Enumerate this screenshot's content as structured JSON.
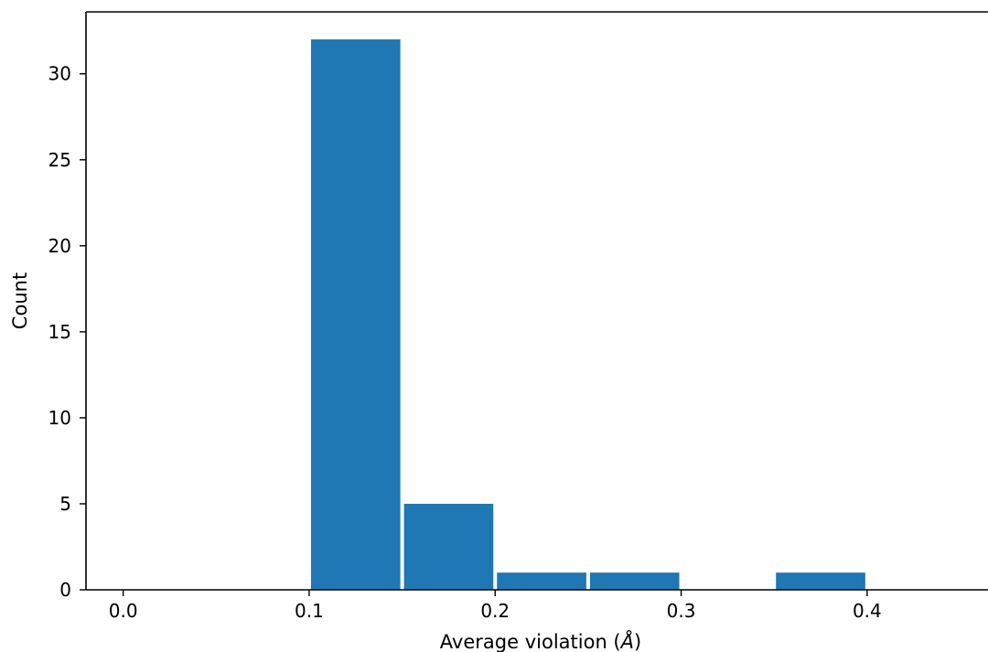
{
  "chart_data": {
    "type": "bar",
    "title": "",
    "xlabel": "Average violation (",
    "xlabel_unit": "Å",
    "xlabel_close": ")",
    "ylabel": "Count",
    "xlim": [
      -0.02,
      0.465
    ],
    "ylim": [
      0,
      33.6
    ],
    "xticks": [
      0.0,
      0.1,
      0.2,
      0.3,
      0.4
    ],
    "xtick_labels": [
      "0.0",
      "0.1",
      "0.2",
      "0.3",
      "0.4"
    ],
    "yticks": [
      0,
      5,
      10,
      15,
      20,
      25,
      30
    ],
    "ytick_labels": [
      "0",
      "5",
      "10",
      "15",
      "20",
      "25",
      "30"
    ],
    "bar_color": "#1f77b4",
    "grid": false,
    "bins": [
      {
        "x0": 0.1,
        "x1": 0.15,
        "count": 32
      },
      {
        "x0": 0.15,
        "x1": 0.2,
        "count": 5
      },
      {
        "x0": 0.2,
        "x1": 0.25,
        "count": 1
      },
      {
        "x0": 0.25,
        "x1": 0.3,
        "count": 1
      },
      {
        "x0": 0.3,
        "x1": 0.35,
        "count": 0
      },
      {
        "x0": 0.35,
        "x1": 0.4,
        "count": 1
      }
    ]
  }
}
